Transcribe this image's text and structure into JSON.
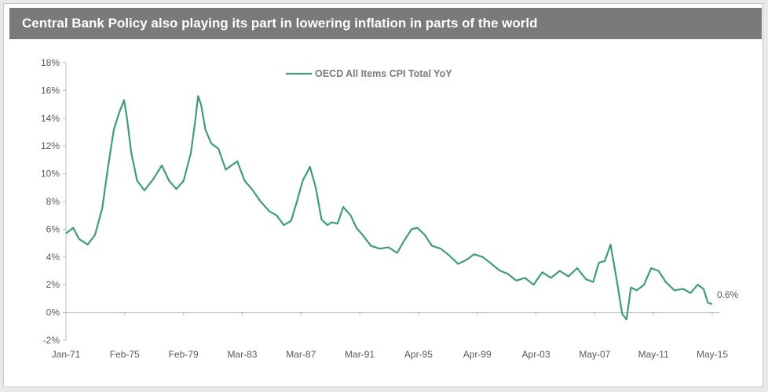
{
  "header": {
    "title": "Central Bank Policy also playing its part in lowering inflation in parts of the world"
  },
  "chart_data": {
    "type": "line",
    "title": "Central Bank Policy also playing its part in lowering inflation in parts of the world",
    "xlabel": "",
    "ylabel": "",
    "ylim": [
      -2,
      18
    ],
    "y_ticks": [
      "-2%",
      "0%",
      "2%",
      "4%",
      "6%",
      "8%",
      "10%",
      "12%",
      "14%",
      "16%",
      "18%"
    ],
    "x_ticks": [
      "Jan-71",
      "Feb-75",
      "Feb-79",
      "Mar-83",
      "Mar-87",
      "Mar-91",
      "Apr-95",
      "Apr-99",
      "Apr-03",
      "May-07",
      "May-11",
      "May-15"
    ],
    "grid": false,
    "legend": "top-center",
    "series_color": "#3f9a7f",
    "series": [
      {
        "name": "OECD All Items CPI Total YoY",
        "x": [
          1971.0,
          1971.5,
          1971.9,
          1972.5,
          1973.0,
          1973.5,
          1973.9,
          1974.3,
          1974.7,
          1975.0,
          1975.2,
          1975.5,
          1975.9,
          1976.4,
          1977.0,
          1977.6,
          1978.1,
          1978.6,
          1979.1,
          1979.6,
          1979.9,
          1980.1,
          1980.3,
          1980.6,
          1981.0,
          1981.5,
          1982.0,
          1982.4,
          1982.8,
          1983.3,
          1983.8,
          1984.4,
          1985.0,
          1985.5,
          1986.0,
          1986.5,
          1986.9,
          1987.3,
          1987.8,
          1988.2,
          1988.6,
          1989.0,
          1989.3,
          1989.7,
          1990.1,
          1990.6,
          1991.0,
          1991.5,
          1992.0,
          1992.6,
          1993.2,
          1993.8,
          1994.3,
          1994.8,
          1995.2,
          1995.7,
          1996.2,
          1996.8,
          1997.4,
          1998.0,
          1998.6,
          1999.1,
          1999.7,
          2000.3,
          2000.9,
          2001.4,
          2002.0,
          2002.6,
          2003.2,
          2003.8,
          2004.4,
          2005.0,
          2005.6,
          2006.2,
          2006.8,
          2007.3,
          2007.7,
          2008.1,
          2008.5,
          2008.9,
          2009.3,
          2009.6,
          2009.9,
          2010.3,
          2010.8,
          2011.3,
          2011.8,
          2012.3,
          2012.9,
          2013.5,
          2014.0,
          2014.5,
          2014.9,
          2015.2,
          2015.5
        ],
        "values": [
          5.7,
          6.1,
          5.3,
          4.9,
          5.6,
          7.5,
          10.5,
          13.2,
          14.5,
          15.3,
          14.0,
          11.5,
          9.5,
          8.8,
          9.6,
          10.6,
          9.5,
          8.9,
          9.5,
          11.5,
          13.8,
          15.6,
          15.0,
          13.2,
          12.2,
          11.8,
          10.3,
          10.6,
          10.9,
          9.5,
          8.9,
          8.0,
          7.3,
          7.0,
          6.3,
          6.6,
          8.0,
          9.5,
          10.5,
          9.0,
          6.7,
          6.3,
          6.5,
          6.4,
          7.6,
          7.0,
          6.1,
          5.5,
          4.8,
          4.6,
          4.7,
          4.3,
          5.2,
          6.0,
          6.1,
          5.6,
          4.8,
          4.6,
          4.1,
          3.5,
          3.8,
          4.2,
          4.0,
          3.5,
          3.0,
          2.8,
          2.3,
          2.5,
          2.0,
          2.9,
          2.5,
          3.0,
          2.6,
          3.2,
          2.4,
          2.2,
          3.6,
          3.7,
          4.9,
          2.5,
          -0.1,
          -0.5,
          1.8,
          1.6,
          2.0,
          3.2,
          3.0,
          2.2,
          1.6,
          1.7,
          1.4,
          2.0,
          1.7,
          0.7,
          0.6
        ]
      }
    ],
    "annotations": [
      {
        "text": "0.6%",
        "x": 2015.5,
        "y": 0.6
      }
    ]
  }
}
